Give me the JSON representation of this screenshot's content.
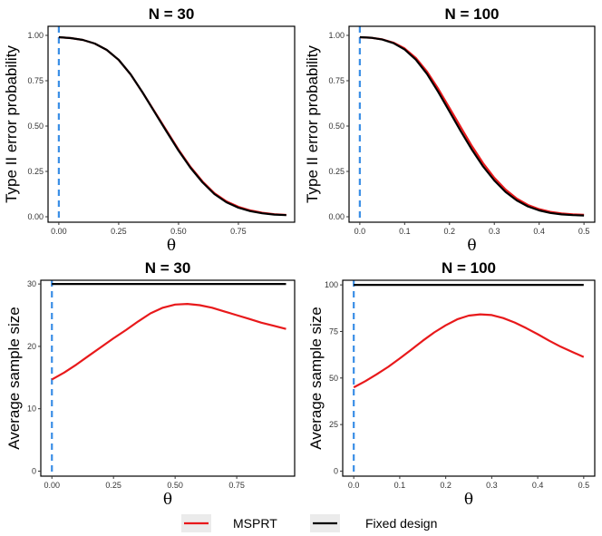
{
  "colors": {
    "msprt": "#e8191b",
    "fixed": "#000000",
    "reference": "#3a8ee6",
    "legend_key_bg": "#ebebeb"
  },
  "legend": {
    "items": [
      {
        "label": "MSPRT",
        "color": "#e8191b"
      },
      {
        "label": "Fixed design",
        "color": "#000000"
      }
    ]
  },
  "chart_data": [
    {
      "type": "line",
      "title": "N = 30",
      "xlabel": "θ",
      "ylabel": "Type II error probability",
      "xlim": [
        -0.045,
        0.985
      ],
      "ylim": [
        -0.03,
        1.05
      ],
      "x_ticks": [
        0.0,
        0.25,
        0.5,
        0.75
      ],
      "x_tick_labels": [
        "0.00",
        "0.25",
        "0.50",
        "0.75"
      ],
      "y_ticks": [
        0.0,
        0.25,
        0.5,
        0.75,
        1.0
      ],
      "y_tick_labels": [
        "0.00",
        "0.25",
        "0.50",
        "0.75",
        "1.00"
      ],
      "reference_vline": 0.0,
      "series": [
        {
          "name": "MSPRT",
          "x": [
            0.0,
            0.05,
            0.1,
            0.15,
            0.2,
            0.25,
            0.3,
            0.35,
            0.4,
            0.45,
            0.5,
            0.55,
            0.6,
            0.65,
            0.7,
            0.75,
            0.8,
            0.85,
            0.9,
            0.95
          ],
          "values": [
            0.99,
            0.985,
            0.975,
            0.955,
            0.92,
            0.865,
            0.785,
            0.685,
            0.58,
            0.475,
            0.37,
            0.275,
            0.195,
            0.13,
            0.085,
            0.055,
            0.035,
            0.022,
            0.014,
            0.01
          ]
        },
        {
          "name": "Fixed design",
          "x": [
            0.0,
            0.05,
            0.1,
            0.15,
            0.2,
            0.25,
            0.3,
            0.35,
            0.4,
            0.45,
            0.5,
            0.55,
            0.6,
            0.65,
            0.7,
            0.75,
            0.8,
            0.85,
            0.9,
            0.95
          ],
          "values": [
            0.99,
            0.985,
            0.975,
            0.955,
            0.92,
            0.865,
            0.785,
            0.685,
            0.577,
            0.47,
            0.365,
            0.27,
            0.19,
            0.125,
            0.08,
            0.05,
            0.031,
            0.019,
            0.012,
            0.009
          ]
        }
      ]
    },
    {
      "type": "line",
      "title": "N = 100",
      "xlabel": "θ",
      "ylabel": "Type II error probability",
      "xlim": [
        -0.024,
        0.524
      ],
      "ylim": [
        -0.03,
        1.05
      ],
      "x_ticks": [
        0.0,
        0.1,
        0.2,
        0.3,
        0.4,
        0.5
      ],
      "x_tick_labels": [
        "0.0",
        "0.1",
        "0.2",
        "0.3",
        "0.4",
        "0.5"
      ],
      "y_ticks": [
        0.0,
        0.25,
        0.5,
        0.75,
        1.0
      ],
      "y_tick_labels": [
        "0.00",
        "0.25",
        "0.50",
        "0.75",
        "1.00"
      ],
      "reference_vline": 0.0,
      "series": [
        {
          "name": "MSPRT",
          "x": [
            0.0,
            0.025,
            0.05,
            0.075,
            0.1,
            0.125,
            0.15,
            0.175,
            0.2,
            0.225,
            0.25,
            0.275,
            0.3,
            0.325,
            0.35,
            0.375,
            0.4,
            0.425,
            0.45,
            0.475,
            0.5
          ],
          "values": [
            0.99,
            0.987,
            0.978,
            0.96,
            0.928,
            0.875,
            0.8,
            0.705,
            0.6,
            0.495,
            0.39,
            0.295,
            0.215,
            0.15,
            0.1,
            0.065,
            0.042,
            0.027,
            0.018,
            0.013,
            0.011
          ]
        },
        {
          "name": "Fixed design",
          "x": [
            0.0,
            0.025,
            0.05,
            0.075,
            0.1,
            0.125,
            0.15,
            0.175,
            0.2,
            0.225,
            0.25,
            0.275,
            0.3,
            0.325,
            0.35,
            0.375,
            0.4,
            0.425,
            0.45,
            0.475,
            0.5
          ],
          "values": [
            0.99,
            0.987,
            0.977,
            0.957,
            0.922,
            0.866,
            0.787,
            0.688,
            0.58,
            0.473,
            0.37,
            0.277,
            0.2,
            0.137,
            0.09,
            0.057,
            0.035,
            0.021,
            0.013,
            0.009,
            0.007
          ]
        }
      ]
    },
    {
      "type": "line",
      "title": "N = 30",
      "xlabel": "θ",
      "ylabel": "Average sample size",
      "xlim": [
        -0.045,
        0.985
      ],
      "ylim": [
        -0.8,
        30.6
      ],
      "x_ticks": [
        0.0,
        0.25,
        0.5,
        0.75
      ],
      "x_tick_labels": [
        "0.00",
        "0.25",
        "0.50",
        "0.75"
      ],
      "y_ticks": [
        0,
        10,
        20,
        30
      ],
      "y_tick_labels": [
        "0",
        "10",
        "20",
        "30"
      ],
      "reference_vline": 0.0,
      "series": [
        {
          "name": "MSPRT",
          "x": [
            0.0,
            0.05,
            0.1,
            0.15,
            0.2,
            0.25,
            0.3,
            0.35,
            0.4,
            0.45,
            0.5,
            0.55,
            0.6,
            0.65,
            0.7,
            0.75,
            0.8,
            0.85,
            0.9,
            0.95
          ],
          "values": [
            14.7,
            15.8,
            17.1,
            18.5,
            19.9,
            21.3,
            22.6,
            24.0,
            25.3,
            26.2,
            26.7,
            26.8,
            26.6,
            26.2,
            25.6,
            25.0,
            24.4,
            23.8,
            23.3,
            22.8
          ]
        },
        {
          "name": "Fixed design",
          "x": [
            0.0,
            0.95
          ],
          "values": [
            30,
            30
          ]
        }
      ]
    },
    {
      "type": "line",
      "title": "N = 100",
      "xlabel": "θ",
      "ylabel": "Average sample size",
      "xlim": [
        -0.024,
        0.524
      ],
      "ylim": [
        -2.7,
        102.5
      ],
      "x_ticks": [
        0.0,
        0.1,
        0.2,
        0.3,
        0.4,
        0.5
      ],
      "x_tick_labels": [
        "0.0",
        "0.1",
        "0.2",
        "0.3",
        "0.4",
        "0.5"
      ],
      "y_ticks": [
        0,
        25,
        50,
        75,
        100
      ],
      "y_tick_labels": [
        "0",
        "25",
        "50",
        "75",
        "100"
      ],
      "reference_vline": 0.0,
      "series": [
        {
          "name": "MSPRT",
          "x": [
            0.0,
            0.025,
            0.05,
            0.075,
            0.1,
            0.125,
            0.15,
            0.175,
            0.2,
            0.225,
            0.25,
            0.275,
            0.3,
            0.325,
            0.35,
            0.375,
            0.4,
            0.425,
            0.45,
            0.475,
            0.5
          ],
          "values": [
            45.0,
            48.3,
            52.0,
            56.0,
            60.5,
            65.2,
            70.0,
            74.5,
            78.3,
            81.5,
            83.5,
            84.2,
            83.8,
            82.2,
            79.8,
            76.8,
            73.5,
            70.0,
            66.8,
            64.0,
            61.3
          ]
        },
        {
          "name": "Fixed design",
          "x": [
            0.0,
            0.5
          ],
          "values": [
            100,
            100
          ]
        }
      ]
    }
  ]
}
